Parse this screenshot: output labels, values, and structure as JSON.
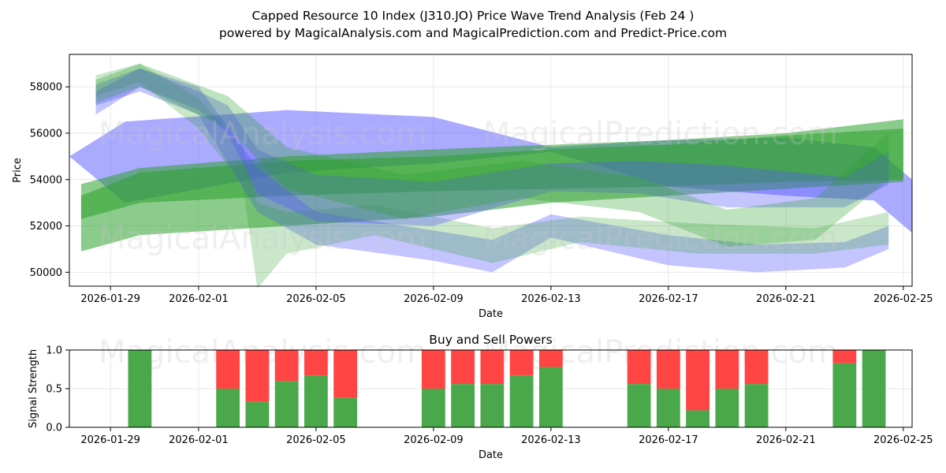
{
  "title": "Capped Resource 10 Index (J310.JO) Price Wave Trend Analysis (Feb 24 )",
  "subtitle": "powered by MagicalAnalysis.com and MagicalPrediction.com and Predict-Price.com",
  "watermarks": [
    "MagicalAnalysis.com",
    "MagicalPrediction.com"
  ],
  "colors": {
    "green": "#2ca02c",
    "blue": "#5555ff",
    "buy": "#4aa84a",
    "sell": "#ff4444"
  },
  "chart_data": [
    {
      "type": "area",
      "xlabel": "Date",
      "ylabel": "Price",
      "xlim": [
        "2026-01-27.6",
        "2026-02-25.3"
      ],
      "ylim": [
        49400,
        59400
      ],
      "x_ticks": [
        "2026-01-29",
        "2026-02-01",
        "2026-02-05",
        "2026-02-09",
        "2026-02-13",
        "2026-02-17",
        "2026-02-21",
        "2026-02-25"
      ],
      "y_ticks": [
        50000,
        52000,
        54000,
        56000,
        58000
      ],
      "grid": true,
      "bands": [
        {
          "color": "blue",
          "opacity": 0.5,
          "x": [
            "2026-01-27.6",
            "2026-01-29.5",
            "2026-02-04",
            "2026-02-09",
            "2026-02-13",
            "2026-02-17",
            "2026-02-21",
            "2026-02-24",
            "2026-02-25.3"
          ],
          "lower": [
            55000,
            53000,
            54300,
            54700,
            55200,
            53700,
            53300,
            53100,
            51700
          ],
          "upper": [
            55000,
            56500,
            57000,
            56700,
            55400,
            55700,
            55800,
            55400,
            54000
          ]
        },
        {
          "color": "green",
          "opacity": 0.55,
          "x": [
            "2026-01-28",
            "2026-01-30",
            "2026-02-04",
            "2026-02-09",
            "2026-02-13",
            "2026-02-17",
            "2026-02-21",
            "2026-02-25"
          ],
          "lower": [
            50900,
            51600,
            52000,
            52400,
            53000,
            53300,
            53600,
            53900
          ],
          "upper": [
            53300,
            54300,
            54800,
            55000,
            55300,
            55500,
            55900,
            56200
          ]
        },
        {
          "color": "green",
          "opacity": 0.55,
          "x": [
            "2026-01-28",
            "2026-01-30",
            "2026-02-04",
            "2026-02-09",
            "2026-02-13",
            "2026-02-17",
            "2026-02-21",
            "2026-02-25"
          ],
          "lower": [
            52300,
            53000,
            53300,
            53500,
            53600,
            53700,
            53900,
            54000
          ],
          "upper": [
            53800,
            54500,
            55000,
            55300,
            55500,
            55700,
            56000,
            56600
          ]
        },
        {
          "color": "blue",
          "opacity": 0.35,
          "x": [
            "2026-01-28.5",
            "2026-01-30",
            "2026-02-01",
            "2026-02-03",
            "2026-02-05",
            "2026-02-09",
            "2026-02-11",
            "2026-02-13",
            "2026-02-17",
            "2026-02-20",
            "2026-02-23",
            "2026-02-24.5"
          ],
          "lower": [
            57200,
            57800,
            56800,
            52600,
            51200,
            50500,
            50000,
            51500,
            50300,
            50000,
            50200,
            51000
          ],
          "upper": [
            58100,
            58800,
            58000,
            54500,
            52600,
            51800,
            51400,
            52500,
            51600,
            51200,
            51300,
            52000
          ]
        },
        {
          "color": "green",
          "opacity": 0.25,
          "x": [
            "2026-01-28.5",
            "2026-01-30",
            "2026-02-01",
            "2026-02-02.5",
            "2026-02-03",
            "2026-02-04",
            "2026-02-07",
            "2026-02-11",
            "2026-02-14",
            "2026-02-18",
            "2026-02-22",
            "2026-02-24.5"
          ],
          "lower": [
            57600,
            58200,
            56200,
            53800,
            49300,
            50800,
            51600,
            50400,
            51300,
            50800,
            50800,
            51200
          ],
          "upper": [
            58500,
            59000,
            57500,
            55500,
            53000,
            52600,
            52900,
            51900,
            52400,
            52100,
            51900,
            52600
          ]
        },
        {
          "color": "blue",
          "opacity": 0.35,
          "x": [
            "2026-01-28.5",
            "2026-01-30",
            "2026-02-01",
            "2026-02-02",
            "2026-02-03",
            "2026-02-05",
            "2026-02-09",
            "2026-02-13",
            "2026-02-16",
            "2026-02-19",
            "2026-02-23",
            "2026-02-24.5"
          ],
          "lower": [
            56800,
            58000,
            57000,
            56000,
            53400,
            52200,
            52000,
            53500,
            53400,
            52800,
            52800,
            53800
          ],
          "upper": [
            57800,
            58800,
            57800,
            57200,
            55300,
            54200,
            53900,
            54700,
            54800,
            54600,
            54100,
            55200
          ]
        },
        {
          "color": "green",
          "opacity": 0.3,
          "x": [
            "2026-01-28.5",
            "2026-01-30",
            "2026-02-02",
            "2026-02-04",
            "2026-02-08",
            "2026-02-12",
            "2026-02-16",
            "2026-02-19",
            "2026-02-22",
            "2026-02-24.5"
          ],
          "lower": [
            57300,
            58000,
            56200,
            53600,
            52300,
            53200,
            52600,
            51100,
            51400,
            54000
          ],
          "upper": [
            58300,
            59000,
            57600,
            55400,
            54200,
            54800,
            54100,
            52700,
            53200,
            56000
          ]
        }
      ],
      "watermark_rows": [
        {
          "texts": [
            "MagicalAnalysis.com",
            "MagicalPrediction.com"
          ],
          "y": 56000
        },
        {
          "texts": [
            "MagicalAnalysis.com",
            "MagicalPrediction.com"
          ],
          "y": 51500
        }
      ]
    },
    {
      "type": "bar",
      "title": "Buy and Sell Powers",
      "xlabel": "Date",
      "ylabel": "Signal Strength",
      "ylim": [
        0,
        1.0
      ],
      "y_ticks": [
        0.0,
        0.5,
        1.0
      ],
      "x_ticks": [
        "2026-01-29",
        "2026-02-01",
        "2026-02-05",
        "2026-02-09",
        "2026-02-13",
        "2026-02-17",
        "2026-02-21",
        "2026-02-25"
      ],
      "grid": true,
      "series": [
        {
          "name": "Buy",
          "color": "buy"
        },
        {
          "name": "Sell",
          "color": "sell"
        }
      ],
      "bars": [
        {
          "date": "2026-01-30",
          "buy": 1.0
        },
        {
          "date": "2026-02-02",
          "buy": 0.5
        },
        {
          "date": "2026-02-03",
          "buy": 0.33
        },
        {
          "date": "2026-02-04",
          "buy": 0.6
        },
        {
          "date": "2026-02-05",
          "buy": 0.67
        },
        {
          "date": "2026-02-06",
          "buy": 0.38
        },
        {
          "date": "2026-02-09",
          "buy": 0.5
        },
        {
          "date": "2026-02-10",
          "buy": 0.56
        },
        {
          "date": "2026-02-11",
          "buy": 0.56
        },
        {
          "date": "2026-02-12",
          "buy": 0.67
        },
        {
          "date": "2026-02-13",
          "buy": 0.78
        },
        {
          "date": "2026-02-16",
          "buy": 0.56
        },
        {
          "date": "2026-02-17",
          "buy": 0.5
        },
        {
          "date": "2026-02-18",
          "buy": 0.22
        },
        {
          "date": "2026-02-19",
          "buy": 0.5
        },
        {
          "date": "2026-02-20",
          "buy": 0.56
        },
        {
          "date": "2026-02-23",
          "buy": 0.83
        },
        {
          "date": "2026-02-24",
          "buy": 1.0
        }
      ],
      "watermark_text": [
        "MagicalAnalysis.com",
        "MagicalPrediction.com"
      ]
    }
  ]
}
